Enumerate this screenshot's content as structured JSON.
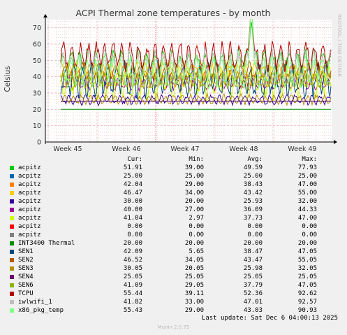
{
  "chart_data": {
    "type": "line",
    "title": "ACPI Thermal zone temperatures - by month",
    "ylabel": "Celsius",
    "xlabel": "",
    "ylim": [
      0,
      75
    ],
    "yticks": [
      0,
      10,
      20,
      30,
      40,
      50,
      60,
      70
    ],
    "x_ticks": [
      "Week 45",
      "Week 46",
      "Week 47",
      "Week 48",
      "Week 49"
    ],
    "side_label": "RRDTOOL / TOBI OETIKER",
    "grid": true,
    "legend_position": "bottom",
    "columns": [
      "Cur:",
      "Min:",
      "Avg:",
      "Max:"
    ],
    "series": [
      {
        "name": "acpitz",
        "color": "#00cc00",
        "cur": "51.91",
        "min": "39.00",
        "avg": "49.59",
        "max": "77.93"
      },
      {
        "name": "acpitz",
        "color": "#0066b3",
        "cur": "25.00",
        "min": "25.00",
        "avg": "25.00",
        "max": "25.00"
      },
      {
        "name": "acpitz",
        "color": "#ff8000",
        "cur": "42.04",
        "min": "29.00",
        "avg": "38.43",
        "max": "47.00"
      },
      {
        "name": "acpitz",
        "color": "#ffcc00",
        "cur": "46.47",
        "min": "34.00",
        "avg": "43.42",
        "max": "55.00"
      },
      {
        "name": "acpitz",
        "color": "#330099",
        "cur": "30.00",
        "min": "20.00",
        "avg": "25.93",
        "max": "32.00"
      },
      {
        "name": "acpitz",
        "color": "#990099",
        "cur": "40.00",
        "min": "27.00",
        "avg": "36.09",
        "max": "44.33"
      },
      {
        "name": "acpitz",
        "color": "#ccff00",
        "cur": "41.04",
        "min": "2.97",
        "avg": "37.73",
        "max": "47.00"
      },
      {
        "name": "acpitz",
        "color": "#ff0000",
        "cur": "0.00",
        "min": "0.00",
        "avg": "0.00",
        "max": "0.00"
      },
      {
        "name": "acpitz",
        "color": "#808080",
        "cur": "0.00",
        "min": "0.00",
        "avg": "0.00",
        "max": "0.00"
      },
      {
        "name": "INT3400 Thermal",
        "color": "#008f00",
        "cur": "20.00",
        "min": "20.00",
        "avg": "20.00",
        "max": "20.00"
      },
      {
        "name": "SEN1",
        "color": "#00487d",
        "cur": "42.09",
        "min": "5.65",
        "avg": "38.47",
        "max": "47.05"
      },
      {
        "name": "SEN2",
        "color": "#b35a00",
        "cur": "46.52",
        "min": "34.05",
        "avg": "43.47",
        "max": "55.05"
      },
      {
        "name": "SEN3",
        "color": "#b38f00",
        "cur": "30.05",
        "min": "20.05",
        "avg": "25.98",
        "max": "32.05"
      },
      {
        "name": "SEN4",
        "color": "#6b006b",
        "cur": "25.05",
        "min": "25.05",
        "avg": "25.05",
        "max": "25.05"
      },
      {
        "name": "SEN6",
        "color": "#8fb300",
        "cur": "41.09",
        "min": "29.05",
        "avg": "37.79",
        "max": "47.05"
      },
      {
        "name": "TCPU",
        "color": "#b30000",
        "cur": "55.44",
        "min": "39.11",
        "avg": "52.36",
        "max": "92.62"
      },
      {
        "name": "iwlwifi_1",
        "color": "#bebebe",
        "cur": "41.82",
        "min": "33.00",
        "avg": "47.01",
        "max": "92.57"
      },
      {
        "name": "x86_pkg_temp",
        "color": "#80ff80",
        "cur": "55.43",
        "min": "29.00",
        "avg": "43.03",
        "max": "90.93"
      }
    ]
  },
  "last_update": "Last update: Sat Dec  6 04:00:13 2025",
  "footer": "Munin 2.0.75"
}
